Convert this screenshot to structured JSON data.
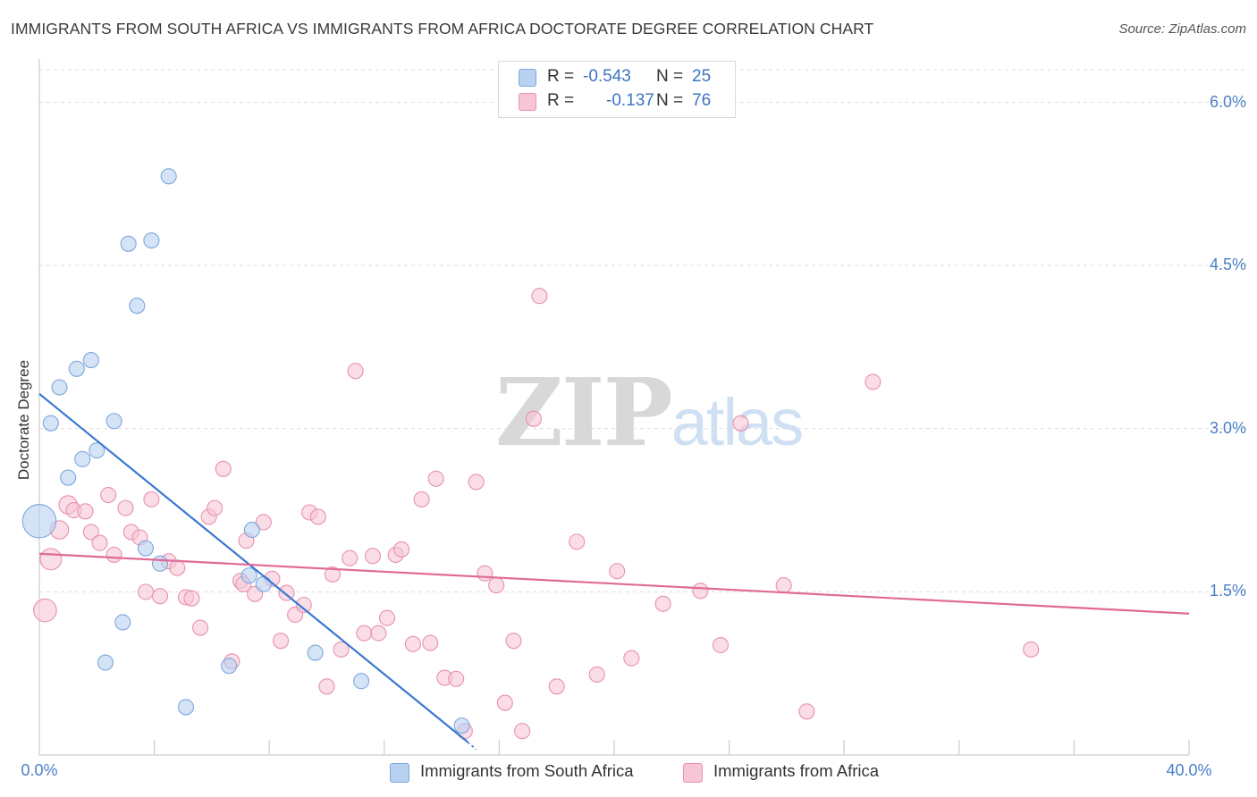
{
  "header": {
    "title": "IMMIGRANTS FROM SOUTH AFRICA VS IMMIGRANTS FROM AFRICA DOCTORATE DEGREE CORRELATION CHART",
    "source": "Source: ZipAtlas.com"
  },
  "watermark": {
    "zip": "ZIP",
    "atlas": "atlas"
  },
  "legend": {
    "rows": [
      {
        "r_label": "R =",
        "r_value": "-0.543",
        "n_label": "N =",
        "n_value": "25"
      },
      {
        "r_label": "R =",
        "r_value": "-0.137",
        "n_label": "N =",
        "n_value": "76"
      }
    ]
  },
  "colors": {
    "blue_fill": "#b9d1f1",
    "blue_stroke": "#7ea7dc",
    "blue_line": "#3a78d0",
    "pink_fill": "#f6c6d6",
    "pink_stroke": "#e891ae",
    "pink_line": "#e06a96",
    "grid": "#dcdcdc",
    "axis": "#cccccc",
    "tick_text": "#4a7fc8"
  },
  "chart_data": {
    "type": "scatter",
    "title": "IMMIGRANTS FROM SOUTH AFRICA VS IMMIGRANTS FROM AFRICA DOCTORATE DEGREE CORRELATION CHART",
    "xlabel": "",
    "ylabel": "Doctorate Degree",
    "xlim": [
      0,
      40
    ],
    "ylim": [
      0,
      6.3
    ],
    "x_tick_labels": [
      {
        "value": 0,
        "label": "0.0%"
      },
      {
        "value": 40,
        "label": "40.0%"
      }
    ],
    "y_ticks": [
      {
        "value": 1.5,
        "label": "1.5%"
      },
      {
        "value": 3.0,
        "label": "3.0%"
      },
      {
        "value": 4.5,
        "label": "4.5%"
      },
      {
        "value": 6.0,
        "label": "6.0%"
      }
    ],
    "x_minor_ticks": [
      4,
      8,
      12,
      16,
      20,
      24,
      28,
      32,
      36,
      40
    ],
    "grid": true,
    "legend_position": "top-center",
    "series": [
      {
        "name": "Immigrants from South Africa",
        "color": "#b9d1f1",
        "r": -0.543,
        "n": 25,
        "points": [
          {
            "x": 0.0,
            "y": 2.15,
            "s": 2.2
          },
          {
            "x": 0.4,
            "y": 3.05,
            "s": 1
          },
          {
            "x": 0.7,
            "y": 3.38,
            "s": 1
          },
          {
            "x": 1.0,
            "y": 2.55,
            "s": 1
          },
          {
            "x": 1.3,
            "y": 3.55,
            "s": 1
          },
          {
            "x": 1.5,
            "y": 2.72,
            "s": 1
          },
          {
            "x": 1.8,
            "y": 3.63,
            "s": 1
          },
          {
            "x": 2.0,
            "y": 2.8,
            "s": 1
          },
          {
            "x": 2.3,
            "y": 0.85,
            "s": 1
          },
          {
            "x": 2.6,
            "y": 3.07,
            "s": 1
          },
          {
            "x": 2.9,
            "y": 1.22,
            "s": 1
          },
          {
            "x": 3.1,
            "y": 4.7,
            "s": 1
          },
          {
            "x": 3.4,
            "y": 4.13,
            "s": 1
          },
          {
            "x": 3.7,
            "y": 1.9,
            "s": 1
          },
          {
            "x": 3.9,
            "y": 4.73,
            "s": 1
          },
          {
            "x": 4.2,
            "y": 1.76,
            "s": 1
          },
          {
            "x": 4.5,
            "y": 5.32,
            "s": 1
          },
          {
            "x": 5.1,
            "y": 0.44,
            "s": 1
          },
          {
            "x": 6.6,
            "y": 0.82,
            "s": 1
          },
          {
            "x": 7.4,
            "y": 2.07,
            "s": 1
          },
          {
            "x": 7.3,
            "y": 1.65,
            "s": 1
          },
          {
            "x": 7.8,
            "y": 1.57,
            "s": 1
          },
          {
            "x": 9.6,
            "y": 0.94,
            "s": 1
          },
          {
            "x": 11.2,
            "y": 0.68,
            "s": 1
          },
          {
            "x": 14.7,
            "y": 0.27,
            "s": 1
          }
        ],
        "trend": {
          "x0": 0.0,
          "y0": 3.32,
          "x1": 14.9,
          "y1": 0.12,
          "dash_to_x": 15.2,
          "dash_to_y": 0.05
        }
      },
      {
        "name": "Immigrants from Africa",
        "color": "#f6c6d6",
        "r": -0.137,
        "n": 76,
        "points": [
          {
            "x": 0.2,
            "y": 1.33,
            "s": 1.5
          },
          {
            "x": 0.4,
            "y": 1.8,
            "s": 1.4
          },
          {
            "x": 0.7,
            "y": 2.07,
            "s": 1.2
          },
          {
            "x": 1.0,
            "y": 2.3,
            "s": 1.2
          },
          {
            "x": 1.2,
            "y": 2.25,
            "s": 1
          },
          {
            "x": 1.6,
            "y": 2.24,
            "s": 1
          },
          {
            "x": 1.8,
            "y": 2.05,
            "s": 1
          },
          {
            "x": 2.1,
            "y": 1.95,
            "s": 1
          },
          {
            "x": 2.4,
            "y": 2.39,
            "s": 1
          },
          {
            "x": 2.6,
            "y": 1.84,
            "s": 1
          },
          {
            "x": 3.0,
            "y": 2.27,
            "s": 1
          },
          {
            "x": 3.2,
            "y": 2.05,
            "s": 1
          },
          {
            "x": 3.5,
            "y": 2.0,
            "s": 1
          },
          {
            "x": 3.7,
            "y": 1.5,
            "s": 1
          },
          {
            "x": 3.9,
            "y": 2.35,
            "s": 1
          },
          {
            "x": 4.2,
            "y": 1.46,
            "s": 1
          },
          {
            "x": 4.5,
            "y": 1.78,
            "s": 1
          },
          {
            "x": 4.8,
            "y": 1.72,
            "s": 1
          },
          {
            "x": 5.1,
            "y": 1.45,
            "s": 1
          },
          {
            "x": 5.3,
            "y": 1.44,
            "s": 1
          },
          {
            "x": 5.6,
            "y": 1.17,
            "s": 1
          },
          {
            "x": 5.9,
            "y": 2.19,
            "s": 1
          },
          {
            "x": 6.1,
            "y": 2.27,
            "s": 1
          },
          {
            "x": 6.4,
            "y": 2.63,
            "s": 1
          },
          {
            "x": 6.7,
            "y": 0.86,
            "s": 1
          },
          {
            "x": 7.0,
            "y": 1.6,
            "s": 1
          },
          {
            "x": 7.2,
            "y": 1.97,
            "s": 1
          },
          {
            "x": 7.5,
            "y": 1.48,
            "s": 1
          },
          {
            "x": 7.8,
            "y": 2.14,
            "s": 1
          },
          {
            "x": 8.1,
            "y": 1.62,
            "s": 1
          },
          {
            "x": 8.4,
            "y": 1.05,
            "s": 1
          },
          {
            "x": 8.6,
            "y": 1.49,
            "s": 1
          },
          {
            "x": 8.9,
            "y": 1.29,
            "s": 1
          },
          {
            "x": 9.2,
            "y": 1.38,
            "s": 1
          },
          {
            "x": 9.4,
            "y": 2.23,
            "s": 1
          },
          {
            "x": 9.7,
            "y": 2.19,
            "s": 1
          },
          {
            "x": 10.0,
            "y": 0.63,
            "s": 1
          },
          {
            "x": 10.2,
            "y": 1.66,
            "s": 1
          },
          {
            "x": 10.5,
            "y": 0.97,
            "s": 1
          },
          {
            "x": 10.8,
            "y": 1.81,
            "s": 1
          },
          {
            "x": 11.0,
            "y": 3.53,
            "s": 1
          },
          {
            "x": 11.3,
            "y": 1.12,
            "s": 1
          },
          {
            "x": 11.6,
            "y": 1.83,
            "s": 1
          },
          {
            "x": 11.8,
            "y": 1.12,
            "s": 1
          },
          {
            "x": 12.1,
            "y": 1.26,
            "s": 1
          },
          {
            "x": 12.4,
            "y": 1.84,
            "s": 1
          },
          {
            "x": 12.6,
            "y": 1.89,
            "s": 1
          },
          {
            "x": 13.0,
            "y": 1.02,
            "s": 1
          },
          {
            "x": 13.3,
            "y": 2.35,
            "s": 1
          },
          {
            "x": 13.6,
            "y": 1.03,
            "s": 1
          },
          {
            "x": 13.8,
            "y": 2.54,
            "s": 1
          },
          {
            "x": 14.1,
            "y": 0.71,
            "s": 1
          },
          {
            "x": 14.5,
            "y": 0.7,
            "s": 1
          },
          {
            "x": 14.8,
            "y": 0.22,
            "s": 1
          },
          {
            "x": 15.2,
            "y": 2.51,
            "s": 1
          },
          {
            "x": 15.5,
            "y": 1.67,
            "s": 1
          },
          {
            "x": 15.9,
            "y": 1.56,
            "s": 1
          },
          {
            "x": 16.2,
            "y": 0.48,
            "s": 1
          },
          {
            "x": 16.5,
            "y": 1.05,
            "s": 1
          },
          {
            "x": 16.8,
            "y": 0.22,
            "s": 1
          },
          {
            "x": 17.2,
            "y": 3.09,
            "s": 1
          },
          {
            "x": 17.4,
            "y": 4.22,
            "s": 1
          },
          {
            "x": 18.0,
            "y": 0.63,
            "s": 1
          },
          {
            "x": 18.7,
            "y": 1.96,
            "s": 1
          },
          {
            "x": 19.4,
            "y": 0.74,
            "s": 1
          },
          {
            "x": 20.1,
            "y": 1.69,
            "s": 1
          },
          {
            "x": 20.6,
            "y": 0.89,
            "s": 1
          },
          {
            "x": 21.7,
            "y": 1.39,
            "s": 1
          },
          {
            "x": 23.0,
            "y": 1.51,
            "s": 1
          },
          {
            "x": 23.7,
            "y": 1.01,
            "s": 1
          },
          {
            "x": 24.4,
            "y": 3.05,
            "s": 1
          },
          {
            "x": 25.9,
            "y": 1.56,
            "s": 1
          },
          {
            "x": 26.7,
            "y": 0.4,
            "s": 1
          },
          {
            "x": 29.0,
            "y": 3.43,
            "s": 1
          },
          {
            "x": 34.5,
            "y": 0.97,
            "s": 1
          },
          {
            "x": 7.1,
            "y": 1.57,
            "s": 1
          }
        ],
        "trend": {
          "x0": 0.0,
          "y0": 1.85,
          "x1": 40.0,
          "y1": 1.3
        }
      }
    ]
  }
}
